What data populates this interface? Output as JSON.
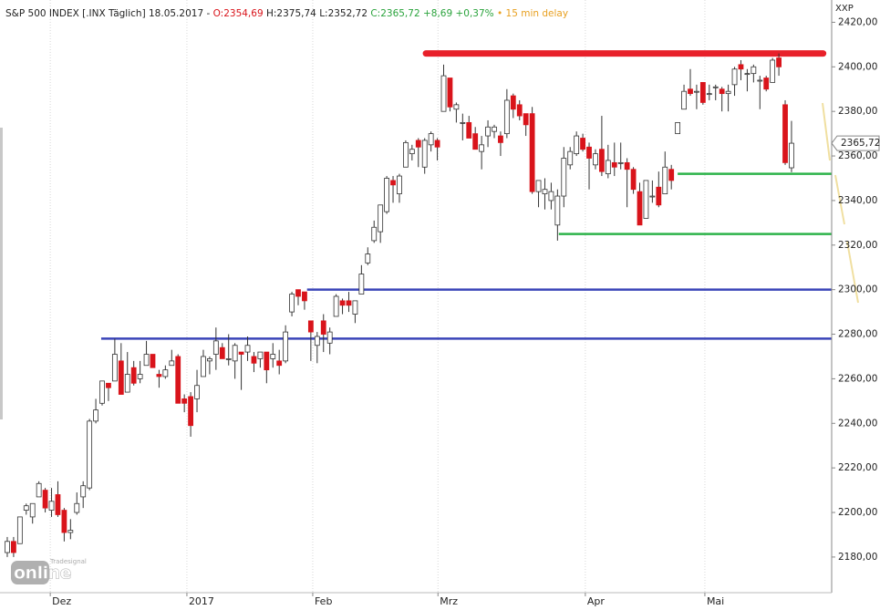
{
  "chart_data": {
    "type": "candlestick",
    "header": {
      "name": "S&P 500 INDEX [.INX Täglich] 18.05.2017 -",
      "open_text": "O:2354,69",
      "high_text": "H:2375,74",
      "low_text": "L:2352,72",
      "close_text": "C:2365,72 +8,69 +0,37%",
      "delay": "15 min delay"
    },
    "axis_label": "XXP",
    "last_price_label": "2365,72",
    "logo": {
      "brand": "Tradesignal",
      "name": "online"
    },
    "up_color": "#ffffff",
    "down_color": "#d9141b",
    "open": [
      2182,
      2187,
      2186,
      2201,
      2198,
      2207,
      2210,
      2201,
      2208,
      2201,
      2191,
      2200,
      2207,
      2211,
      2241,
      2249,
      2258,
      2259,
      2268,
      2254,
      2265,
      2260,
      2266,
      2271,
      2262,
      2261,
      2266,
      2270,
      2251,
      2252,
      2251,
      2261,
      2268,
      2271,
      2274,
      2269,
      2268,
      2272,
      2272,
      2270,
      2269,
      2272,
      2269,
      2268,
      2268,
      2290,
      2300,
      2299,
      2286,
      2275,
      2286,
      2276,
      2288,
      2295,
      2295,
      2289,
      2298,
      2312,
      2322,
      2326,
      2335,
      2349,
      2343,
      2355,
      2361,
      2367,
      2355,
      2365,
      2367,
      2380,
      2395,
      2381,
      2375,
      2375,
      2370,
      2362,
      2369,
      2371,
      2369,
      2370,
      2387,
      2383,
      2379,
      2379,
      2344,
      2343,
      2340,
      2329,
      2342,
      2356,
      2361,
      2368,
      2364,
      2356,
      2363,
      2352,
      2357,
      2357,
      2357,
      2354,
      2344,
      2332,
      2342,
      2346,
      2343,
      2354,
      2370,
      2381,
      2390,
      2389,
      2393,
      2388,
      2391,
      2390,
      2388,
      2392,
      2401,
      2397,
      2397,
      2394,
      2395,
      2393,
      2404,
      2383,
      2354.69
    ],
    "high": [
      2189,
      2189,
      2198,
      2204,
      2204,
      2214,
      2211,
      2211,
      2214,
      2202,
      2197,
      2209,
      2214,
      2242,
      2251,
      2259,
      2258,
      2278,
      2276,
      2272,
      2268,
      2268,
      2277,
      2271,
      2264,
      2266,
      2273,
      2271,
      2253,
      2254,
      2264,
      2273,
      2270,
      2283,
      2276,
      2280,
      2276,
      2272,
      2279,
      2272,
      2272,
      2272,
      2276,
      2273,
      2284,
      2299,
      2300,
      2299,
      2286,
      2281,
      2289,
      2283,
      2298,
      2296,
      2299,
      2295,
      2311,
      2319,
      2331,
      2338,
      2351,
      2351,
      2352,
      2367,
      2365,
      2368,
      2368,
      2371,
      2368,
      2401,
      2395,
      2384,
      2379,
      2378,
      2373,
      2369,
      2376,
      2374,
      2371,
      2390,
      2388,
      2385,
      2379,
      2382,
      2349,
      2350,
      2348,
      2345,
      2364,
      2364,
      2371,
      2370,
      2366,
      2363,
      2378,
      2365,
      2366,
      2366,
      2359,
      2355,
      2348,
      2349,
      2349,
      2353,
      2362,
      2356,
      2375,
      2392,
      2399,
      2392,
      2393,
      2392,
      2392,
      2391,
      2392,
      2400,
      2403,
      2399,
      2401,
      2396,
      2396,
      2404,
      2406,
      2385,
      2375.74
    ],
    "low": [
      2180,
      2180,
      2186,
      2199,
      2195,
      2207,
      2200,
      2198,
      2198,
      2187,
      2188,
      2199,
      2202,
      2210,
      2240,
      2248,
      2250,
      2259,
      2253,
      2254,
      2257,
      2258,
      2266,
      2265,
      2256,
      2260,
      2266,
      2249,
      2245,
      2234,
      2245,
      2261,
      2262,
      2264,
      2269,
      2266,
      2260,
      2255,
      2268,
      2263,
      2265,
      2258,
      2265,
      2262,
      2267,
      2288,
      2293,
      2291,
      2268,
      2267,
      2272,
      2271,
      2288,
      2289,
      2290,
      2285,
      2298,
      2311,
      2321,
      2321,
      2334,
      2339,
      2339,
      2355,
      2358,
      2355,
      2352,
      2362,
      2358,
      2380,
      2380,
      2375,
      2367,
      2368,
      2363,
      2354,
      2364,
      2368,
      2360,
      2368,
      2377,
      2376,
      2369,
      2343,
      2337,
      2336,
      2336,
      2322,
      2337,
      2354,
      2360,
      2362,
      2345,
      2354,
      2351,
      2350,
      2351,
      2354,
      2337,
      2343,
      2329,
      2332,
      2339,
      2337,
      2343,
      2345,
      2370,
      2381,
      2387,
      2381,
      2383,
      2385,
      2385,
      2380,
      2380,
      2387,
      2394,
      2389,
      2393,
      2381,
      2389,
      2393,
      2396,
      2356,
      2352.72
    ],
    "close": [
      2187,
      2182,
      2198,
      2203,
      2204,
      2213,
      2202,
      2205,
      2199,
      2191,
      2192,
      2204,
      2212,
      2241,
      2246,
      2259,
      2256,
      2271,
      2253,
      2262,
      2258,
      2262,
      2271,
      2265,
      2261,
      2264,
      2268,
      2249,
      2249,
      2239,
      2257,
      2270,
      2269,
      2277,
      2269,
      2269,
      2275,
      2271,
      2275,
      2267,
      2272,
      2264,
      2271,
      2266,
      2281,
      2298,
      2297,
      2295,
      2281,
      2279,
      2280,
      2281,
      2297,
      2293,
      2293,
      2295,
      2307,
      2316,
      2328,
      2338,
      2350,
      2347,
      2351,
      2366,
      2363,
      2364,
      2367,
      2370,
      2364,
      2396,
      2382,
      2383,
      2375,
      2368,
      2363,
      2365,
      2373,
      2373,
      2366,
      2385,
      2381,
      2378,
      2374,
      2344,
      2349,
      2345,
      2344,
      2342,
      2359,
      2362,
      2369,
      2363,
      2359,
      2361,
      2353,
      2358,
      2355,
      2357,
      2354,
      2345,
      2329,
      2349,
      2342,
      2338,
      2355,
      2349,
      2375,
      2389,
      2388,
      2389,
      2384,
      2388,
      2391,
      2388,
      2389,
      2399,
      2399,
      2397,
      2400,
      2394,
      2390,
      2403,
      2400,
      2357,
      2365.72
    ],
    "levels": [
      {
        "value": 2406,
        "color": "#e8202a",
        "from": 66.2,
        "to": 129
      },
      {
        "value": 2352,
        "color": "#2db34a",
        "from": 106
      },
      {
        "value": 2325,
        "color": "#2db34a",
        "from": 87.2
      },
      {
        "value": 2300,
        "color": "#3a44b8",
        "from": 47.4
      },
      {
        "value": 2278,
        "color": "#3a44b8",
        "from": 14.85
      }
    ],
    "xlim": [
      -1.15,
      130.35
    ],
    "xticks": [
      {
        "value": 6.8,
        "label": "Dez"
      },
      {
        "value": 28.4,
        "label": "2017"
      },
      {
        "value": 48.3,
        "label": "Feb"
      },
      {
        "value": 68.1,
        "label": "Mrz"
      },
      {
        "value": 91.4,
        "label": "Apr"
      },
      {
        "value": 110.3,
        "label": "Mai"
      }
    ],
    "ylim": [
      2164,
      2430
    ],
    "yticks": [
      {
        "value": 2180,
        "label": "2180,00"
      },
      {
        "value": 2200,
        "label": "2200,00"
      },
      {
        "value": 2220,
        "label": "2220,00"
      },
      {
        "value": 2240,
        "label": "2240,00"
      },
      {
        "value": 2260,
        "label": "2260,00"
      },
      {
        "value": 2280,
        "label": "2280,00"
      },
      {
        "value": 2300,
        "label": "2300,00"
      },
      {
        "value": 2320,
        "label": "2320,00"
      },
      {
        "value": 2340,
        "label": "2340,00"
      },
      {
        "value": 2360,
        "label": "2360,00"
      },
      {
        "value": 2380,
        "label": "2380,00"
      },
      {
        "value": 2400,
        "label": "2400,00"
      },
      {
        "value": 2420,
        "label": "2420,00"
      }
    ]
  }
}
